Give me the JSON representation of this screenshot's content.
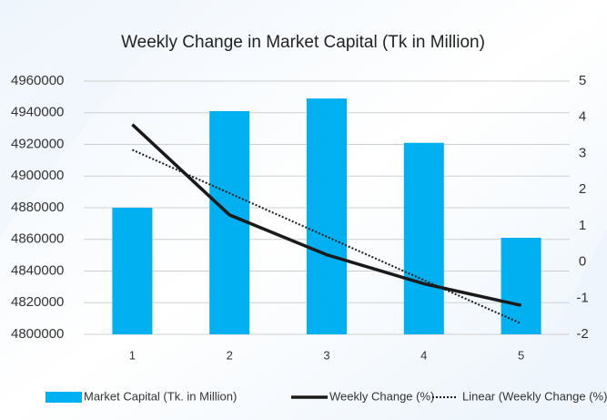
{
  "chart_data": {
    "type": "bar-line",
    "title": "Weekly Change in Market Capital (Tk in Million)",
    "categories": [
      "1",
      "2",
      "3",
      "4",
      "5"
    ],
    "series": [
      {
        "name": "Market Capital (Tk. in Million)",
        "type": "bar",
        "color": "#00b0f0",
        "values": [
          4880000,
          4941000,
          4949000,
          4921000,
          4861000
        ]
      },
      {
        "name": "Weekly Change (%)",
        "type": "line",
        "axis": "y2",
        "color": "#1a1a1a",
        "values": [
          3.8,
          1.3,
          0.2,
          -0.6,
          -1.2
        ]
      },
      {
        "name": "Linear (Weekly Change (%))",
        "type": "trend",
        "axis": "y2",
        "color": "#1a1a1a",
        "values": [
          3.1,
          1.9,
          0.7,
          -0.5,
          -1.7
        ]
      }
    ],
    "ylim": [
      4800000,
      4960000
    ],
    "yticks": [
      4800000,
      4820000,
      4840000,
      4860000,
      4880000,
      4900000,
      4920000,
      4940000,
      4960000
    ],
    "y2lim": [
      -2,
      5
    ],
    "y2ticks": [
      -2,
      -1,
      0,
      1,
      2,
      3,
      4,
      5
    ],
    "grid": true,
    "legend": "bottom"
  }
}
